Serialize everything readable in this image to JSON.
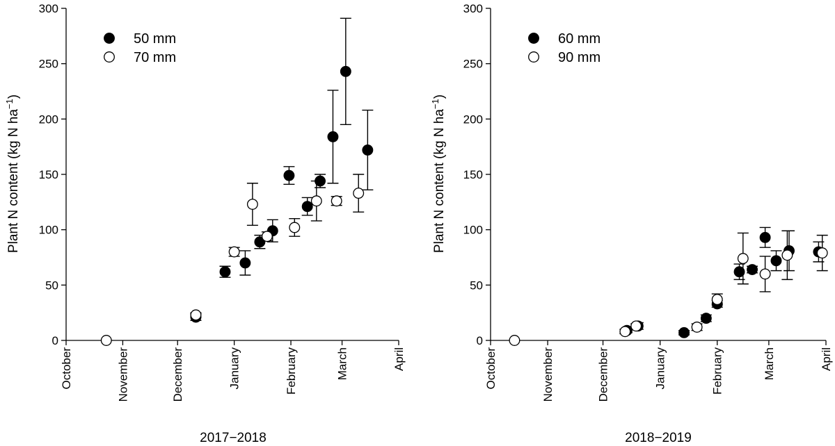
{
  "chart_data": [
    {
      "type": "scatter",
      "xlabel": "2017−2018",
      "ylabel": "Plant N content (kg N ha",
      "ylabel_sup": "−1",
      "ylabel_end": ")",
      "ylim": [
        0,
        300
      ],
      "yticks": [
        0,
        50,
        100,
        150,
        200,
        250,
        300
      ],
      "xlim": [
        "2017-10-01",
        "2018-04-01"
      ],
      "month_ticks": [
        {
          "date": "2017-10-01",
          "label": "October"
        },
        {
          "date": "2017-11-01",
          "label": "November"
        },
        {
          "date": "2017-12-01",
          "label": "December"
        },
        {
          "date": "2018-01-01",
          "label": "January"
        },
        {
          "date": "2018-02-01",
          "label": "February"
        },
        {
          "date": "2018-03-01",
          "label": "March"
        },
        {
          "date": "2018-04-01",
          "label": "April"
        }
      ],
      "legend_position": "top-left",
      "error_bars": true,
      "series": [
        {
          "name": "50 mm",
          "marker": "filled",
          "points": [
            {
              "x": "2017-12-11",
              "y": 21,
              "err": 3
            },
            {
              "x": "2017-12-27",
              "y": 62,
              "err": 5
            },
            {
              "x": "2018-01-07",
              "y": 70,
              "err": 11
            },
            {
              "x": "2018-01-15",
              "y": 89,
              "err": 6
            },
            {
              "x": "2018-01-22",
              "y": 99,
              "err": 10
            },
            {
              "x": "2018-01-31",
              "y": 149,
              "err": 8
            },
            {
              "x": "2018-02-10",
              "y": 121,
              "err": 8
            },
            {
              "x": "2018-02-17",
              "y": 144,
              "err": 6
            },
            {
              "x": "2018-02-24",
              "y": 184,
              "err": 42
            },
            {
              "x": "2018-03-03",
              "y": 243,
              "err": 48
            },
            {
              "x": "2018-03-15",
              "y": 172,
              "err": 36
            }
          ]
        },
        {
          "name": "70 mm",
          "marker": "open",
          "points": [
            {
              "x": "2017-10-23",
              "y": 0,
              "err": 0
            },
            {
              "x": "2017-12-11",
              "y": 23,
              "err": 2
            },
            {
              "x": "2018-01-01",
              "y": 80,
              "err": 4
            },
            {
              "x": "2018-01-11",
              "y": 123,
              "err": 19
            },
            {
              "x": "2018-01-19",
              "y": 94,
              "err": 4
            },
            {
              "x": "2018-02-03",
              "y": 102,
              "err": 8
            },
            {
              "x": "2018-02-15",
              "y": 126,
              "err": 18
            },
            {
              "x": "2018-02-26",
              "y": 126,
              "err": 4
            },
            {
              "x": "2018-03-10",
              "y": 133,
              "err": 17
            }
          ]
        }
      ]
    },
    {
      "type": "scatter",
      "xlabel": "2018−2019",
      "ylabel": "Plant N content (kg N ha",
      "ylabel_sup": "−1",
      "ylabel_end": ")",
      "ylim": [
        0,
        300
      ],
      "yticks": [
        0,
        50,
        100,
        150,
        200,
        250,
        300
      ],
      "xlim": [
        "2018-10-01",
        "2019-04-01"
      ],
      "month_ticks": [
        {
          "date": "2018-10-01",
          "label": "October"
        },
        {
          "date": "2018-11-01",
          "label": "November"
        },
        {
          "date": "2018-12-01",
          "label": "December"
        },
        {
          "date": "2019-01-01",
          "label": "January"
        },
        {
          "date": "2019-02-01",
          "label": "February"
        },
        {
          "date": "2019-03-01",
          "label": "March"
        },
        {
          "date": "2019-04-01",
          "label": "April"
        }
      ],
      "legend_position": "top-left",
      "error_bars": true,
      "series": [
        {
          "name": "60 mm",
          "marker": "filled",
          "points": [
            {
              "x": "2018-12-14",
              "y": 9,
              "err": 2
            },
            {
              "x": "2018-12-20",
              "y": 13,
              "err": 3
            },
            {
              "x": "2019-01-14",
              "y": 7,
              "err": 2
            },
            {
              "x": "2019-01-26",
              "y": 20,
              "err": 3
            },
            {
              "x": "2019-02-01",
              "y": 33,
              "err": 3
            },
            {
              "x": "2019-02-13",
              "y": 62,
              "err": 7
            },
            {
              "x": "2019-02-20",
              "y": 64,
              "err": 3
            },
            {
              "x": "2019-02-27",
              "y": 93,
              "err": 9
            },
            {
              "x": "2019-03-05",
              "y": 72,
              "err": 9
            },
            {
              "x": "2019-03-12",
              "y": 81,
              "err": 18
            },
            {
              "x": "2019-03-28",
              "y": 80,
              "err": 9
            }
          ]
        },
        {
          "name": "90 mm",
          "marker": "open",
          "points": [
            {
              "x": "2018-10-14",
              "y": 0,
              "err": 0
            },
            {
              "x": "2018-12-13",
              "y": 8,
              "err": 2
            },
            {
              "x": "2018-12-19",
              "y": 13,
              "err": 2
            },
            {
              "x": "2019-01-21",
              "y": 12,
              "err": 3
            },
            {
              "x": "2019-02-01",
              "y": 37,
              "err": 5
            },
            {
              "x": "2019-02-15",
              "y": 74,
              "err": 23
            },
            {
              "x": "2019-02-27",
              "y": 60,
              "err": 16
            },
            {
              "x": "2019-03-11",
              "y": 77,
              "err": 22
            },
            {
              "x": "2019-03-30",
              "y": 79,
              "err": 16
            }
          ]
        }
      ]
    }
  ]
}
